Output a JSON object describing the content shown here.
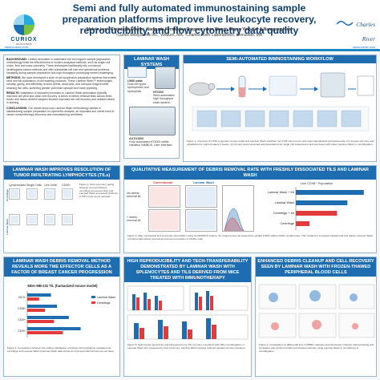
{
  "header": {
    "title": "Semi and fully automated immunostaining sample preparation platforms improve live leukocyte recovery, reproducibility, and flow cytometry data quality",
    "authors_line1": "Melvin Lye¹, Christoph Eberle², Nadiezda Fernandez Oropeza², Ann Wang¹, Chyan Ying Ke¹ & Namyong Kim¹",
    "authors_line2": "¹Curiox Biosystems Inc., Woburn, MA, ²Charles River Laboratories, Worcester, MA",
    "left_logo_text": "CURIOX",
    "left_logo_sub": "BIOSYSTEMS",
    "left_url": "www.curiox.com",
    "right_logo_text": "Charles River",
    "right_url": "www.criver.com"
  },
  "abstract": {
    "background_label": "BACKGROUND:",
    "background_text": "Limited innovation in automated cell and organic sample preparation methodology limits the effectiveness of modern analytical methods, such as single-cell omics, flow and mass cytometry. These techniques traditionally rely on manual centrifugation-based methods and offer substantial cell loss and operational problems. Variability during sample preparation and high-throughput processing remain challenging.",
    "methods_label": "METHODS:",
    "methods_text": "We have developed a suite of cell suspension preparation systems that enable semi and full automation of cell washing protocols. These Laminar Wash™ technologies robustly, gently, and efficiently remove debris, dead cells, and unbound reagent while retaining live cells, achieving greater yield than cytospin and batch pipetting.",
    "results_label": "RESULTS:",
    "results_text": "Adaptation of standard processes to Laminar Wash automation typically improves cell yield and clean cell recovery. A series of debris removal tests across fresh, frozen and tissue-derived samples showed improved live cell recovery and reduced debris in staining.",
    "conclusion_label": "CONCLUSIONS:",
    "conclusion_text": "Our results show how Laminar Wash methodology assists in standardizing sample preparation for cytometric analysis, an important and unmet need in cancer immunotherapy discovery and manufacturing workflows."
  },
  "laminar": {
    "heading": "LAMINAR WASH SYSTEMS",
    "plate_label": "LW96 plate",
    "plate_desc": "Dual cell types hydrophobic and hydrophilic",
    "ht2000_label": "HT2000",
    "ht2000_desc": "Semi-automated, high throughput wash system",
    "auto1000_label": "AUTO1000",
    "auto1000_desc": "Fully automated HT2000 within Hamilton NIMBUS. User interface."
  },
  "workflow": {
    "heading": "SEMI-AUTOMATED IMMNOSTAINING WORKFLOW",
    "caption": "Figure 1. Overview of CT26 syngeneic mouse model and Laminar Wash workflow. (a) CT26 colon tumor cells were transplanted subcutaneously in 6–8-week-old mice and established for approximately 2 weeks. (b) Tumors were harvested and dissociated into single cell suspensions and processed with either Laminar Wash or centrifugation."
  },
  "tils": {
    "heading": "LAMINAR WASH IMPROVES RESOLUTION OF TUMOR INFILTRATING LYMPHOCYTES (TILs)",
    "col1": "Lymphocytes",
    "col2": "Single Cells",
    "col3": "Live Cells",
    "col4": "CD45+",
    "row1": "Centrifuge",
    "row2": "Laminar Wash",
    "caption": "Figure 2. Flow cytometry gating strategy corresponding to centrifuge-processed (top) and Laminar Wash-processed (bottom) CT26 mouse tumor samples."
  },
  "qual": {
    "heading": "QUALITATIVE MEASUREMENT OF DEBRIS REMOVAL RATE WITH FRESHLY DISSOCIATED TILS AND LAMINAR WASH",
    "col_conventional": "Conventional",
    "col_laminar": "Laminar Wash",
    "row_no": "No debris removal kit",
    "row_plus": "+ debris removal kit",
    "chart_title": "Live CD45⁺ Population",
    "caption": "Figure 3. After mechanical and enzymatic dissociation using GentleMACS system, the single tumor cell suspension yielded 6.65% viable CD45+ lymphocytes. This resulted in increased background and debris. Laminar Wash combined with debris removal kit improved resolution of CD45+ cells."
  },
  "debris": {
    "heading": "LAMINAR WASH DEBRIS REMOVAL METHOD REVEALS MORE TME EFFECTOR CELLS AS A FACTOR OF BREAST CANCER PROGRESSION",
    "chart_label": "MDA-MB-231 TIL (humanized mouse model)",
    "caption": "Figure 4. Comparison between the relative distribution of distinct cell populations evaluated via centrifuge and Laminar Wash (Laminar Wash data shows an improved effector/immune cell ratio)."
  },
  "repro": {
    "heading": "HIGH REPRODUCIBILITY AND TECH-TRANSFERABILITY DEMONSTRATED BY LAMINAR WASH WITH SPLENOCYTES AND TILS DERIVED FROM MICE TREATED WITH IMMUNOTHERAPY",
    "caption": "Figure 5. Splenocytes (a) and (b) and harvested tumor TILs (c) were compared with either centrifugation or Laminar Wash and measured by flow cytometry. Laminar Wash showed reduced variation across operators."
  },
  "enhanced": {
    "heading": "ENHANCED DEBRIS CLEANUP AND CELL RECOVERY SEEN BY LAMINAR WASH WITH FROZEN-THAWED PERIPHERAL BLOOD CELLS",
    "caption": "Figure 6. Investigation of differential loss of PBMC subtypes and phenotypic changes during thawing and incubation was performed with post-thawed samples using Laminar Wash in comparison to centrifugation."
  },
  "chart_data": [
    {
      "type": "bar",
      "categories": [
        "Laminar Wash + Kit",
        "Laminar Wash",
        "Centrifuge + Kit",
        "Centrifuge"
      ],
      "series": [
        {
          "name": "",
          "values": [
            33,
            25,
            20,
            6.65
          ]
        }
      ],
      "xlim": [
        0,
        35
      ],
      "colors": [
        "#1f6db1",
        "#1f6db1",
        "#e23b3b",
        "#e23b3b"
      ]
    },
    {
      "type": "bar",
      "title": "MDA-MB-231 TIL (humanized mouse model)",
      "categories": [
        "NCI+",
        "CD8+",
        "CD4+",
        "CD3+"
      ],
      "series": [
        {
          "name": "Laminar Wash",
          "values": [
            8,
            10,
            14,
            18
          ]
        },
        {
          "name": "Centrifuge",
          "values": [
            4,
            6,
            9,
            12
          ]
        }
      ],
      "colors": [
        "#1f6db1",
        "#e23b3b"
      ]
    }
  ]
}
